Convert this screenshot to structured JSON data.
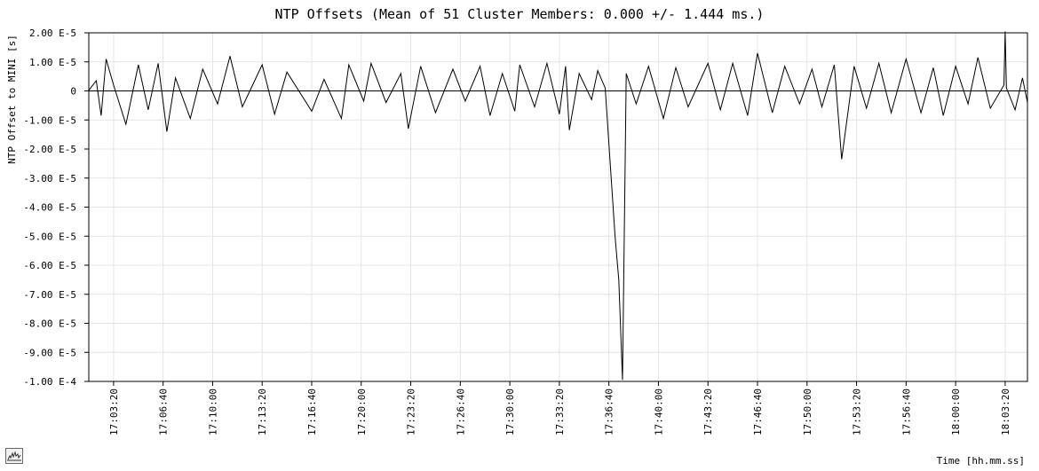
{
  "chart_data": {
    "type": "line",
    "title": "NTP Offsets (Mean of 51 Cluster Members: 0.000 +/- 1.444 ms.)",
    "xlabel": "Time [hh.mm.ss]",
    "ylabel": "NTP Offset to MINI [s]",
    "ylim": [
      -0.0001,
      2e-05
    ],
    "xlim": [
      "17:01:40",
      "18:04:50"
    ],
    "grid": true,
    "legend": "none",
    "line_color": "#000000",
    "y_ticks": [
      {
        "value": 2e-05,
        "label": "2.00 E-5"
      },
      {
        "value": 1e-05,
        "label": "1.00 E-5"
      },
      {
        "value": 0,
        "label": "0"
      },
      {
        "value": -1e-05,
        "label": "-1.00 E-5"
      },
      {
        "value": -2e-05,
        "label": "-2.00 E-5"
      },
      {
        "value": -3e-05,
        "label": "-3.00 E-5"
      },
      {
        "value": -4e-05,
        "label": "-4.00 E-5"
      },
      {
        "value": -5e-05,
        "label": "-5.00 E-5"
      },
      {
        "value": -6e-05,
        "label": "-6.00 E-5"
      },
      {
        "value": -7e-05,
        "label": "-7.00 E-5"
      },
      {
        "value": -8e-05,
        "label": "-8.00 E-5"
      },
      {
        "value": -9e-05,
        "label": "-9.00 E-5"
      },
      {
        "value": -0.0001,
        "label": "-1.00 E-4"
      }
    ],
    "x_ticks": [
      "17:03:20",
      "17:06:40",
      "17:10:00",
      "17:13:20",
      "17:16:40",
      "17:20:00",
      "17:23:20",
      "17:26:40",
      "17:30:00",
      "17:33:20",
      "17:36:40",
      "17:40:00",
      "17:43:20",
      "17:46:40",
      "17:50:00",
      "17:53:20",
      "17:56:40",
      "18:00:00",
      "18:03:20"
    ],
    "series": [
      {
        "points": [
          [
            "17:01:40",
            2e-07
          ],
          [
            "17:02:10",
            3.5e-06
          ],
          [
            "17:02:30",
            -8.5e-06
          ],
          [
            "17:02:50",
            1.1e-05
          ],
          [
            "17:03:20",
            2e-06
          ],
          [
            "17:04:10",
            -1.15e-05
          ],
          [
            "17:05:00",
            9e-06
          ],
          [
            "17:05:40",
            -6.5e-06
          ],
          [
            "17:06:20",
            9.5e-06
          ],
          [
            "17:06:55",
            -1.4e-05
          ],
          [
            "17:07:30",
            4.5e-06
          ],
          [
            "17:08:30",
            -9.5e-06
          ],
          [
            "17:09:20",
            7.5e-06
          ],
          [
            "17:10:20",
            -4.5e-06
          ],
          [
            "17:11:10",
            1.2e-05
          ],
          [
            "17:12:00",
            -5.5e-06
          ],
          [
            "17:13:20",
            9e-06
          ],
          [
            "17:14:10",
            -8e-06
          ],
          [
            "17:15:00",
            6.5e-06
          ],
          [
            "17:16:40",
            -7e-06
          ],
          [
            "17:17:30",
            4e-06
          ],
          [
            "17:18:40",
            -9.5e-06
          ],
          [
            "17:19:10",
            9e-06
          ],
          [
            "17:20:10",
            -3.5e-06
          ],
          [
            "17:20:40",
            9.5e-06
          ],
          [
            "17:21:40",
            -4e-06
          ],
          [
            "17:22:40",
            6e-06
          ],
          [
            "17:23:10",
            -1.3e-05
          ],
          [
            "17:24:00",
            8.5e-06
          ],
          [
            "17:25:00",
            -7.5e-06
          ],
          [
            "17:26:10",
            7.5e-06
          ],
          [
            "17:27:00",
            -3.5e-06
          ],
          [
            "17:28:00",
            8.5e-06
          ],
          [
            "17:28:40",
            -8.5e-06
          ],
          [
            "17:29:30",
            6e-06
          ],
          [
            "17:30:20",
            -7e-06
          ],
          [
            "17:30:40",
            9e-06
          ],
          [
            "17:31:40",
            -5.5e-06
          ],
          [
            "17:32:30",
            9.5e-06
          ],
          [
            "17:33:20",
            -8e-06
          ],
          [
            "17:33:45",
            8.5e-06
          ],
          [
            "17:34:00",
            -1.35e-05
          ],
          [
            "17:34:40",
            6e-06
          ],
          [
            "17:35:30",
            -3e-06
          ],
          [
            "17:35:55",
            7e-06
          ],
          [
            "17:36:25",
            1e-06
          ],
          [
            "17:37:05",
            -5e-05
          ],
          [
            "17:37:20",
            -6.5e-05
          ],
          [
            "17:37:35",
            -9.95e-05
          ],
          [
            "17:37:50",
            6e-06
          ],
          [
            "17:38:30",
            -4.5e-06
          ],
          [
            "17:39:20",
            8.5e-06
          ],
          [
            "17:40:20",
            -9.5e-06
          ],
          [
            "17:41:10",
            8e-06
          ],
          [
            "17:42:00",
            -5.5e-06
          ],
          [
            "17:43:20",
            9.5e-06
          ],
          [
            "17:44:10",
            -6.5e-06
          ],
          [
            "17:45:00",
            9.5e-06
          ],
          [
            "17:46:00",
            -8.5e-06
          ],
          [
            "17:46:40",
            1.3e-05
          ],
          [
            "17:47:40",
            -7.5e-06
          ],
          [
            "17:48:30",
            8.5e-06
          ],
          [
            "17:49:30",
            -4.5e-06
          ],
          [
            "17:50:20",
            7.5e-06
          ],
          [
            "17:51:00",
            -5.5e-06
          ],
          [
            "17:51:50",
            9e-06
          ],
          [
            "17:52:20",
            -2.35e-05
          ],
          [
            "17:53:10",
            8.5e-06
          ],
          [
            "17:54:00",
            -6e-06
          ],
          [
            "17:54:50",
            9.5e-06
          ],
          [
            "17:55:40",
            -7.5e-06
          ],
          [
            "17:56:40",
            1.1e-05
          ],
          [
            "17:57:40",
            -7.5e-06
          ],
          [
            "17:58:30",
            8e-06
          ],
          [
            "17:59:10",
            -8.5e-06
          ],
          [
            "18:00:00",
            8.5e-06
          ],
          [
            "18:00:50",
            -4.5e-06
          ],
          [
            "18:01:30",
            1.15e-05
          ],
          [
            "18:02:20",
            -6e-06
          ],
          [
            "18:03:15",
            2e-06
          ],
          [
            "18:03:20",
            2.05e-05
          ],
          [
            "18:03:25",
            1e-06
          ],
          [
            "18:04:00",
            -6.5e-06
          ],
          [
            "18:04:30",
            4.5e-06
          ],
          [
            "18:04:50",
            -4e-06
          ]
        ]
      }
    ]
  },
  "icons": {
    "corner": "chart-thumbnail-icon"
  }
}
